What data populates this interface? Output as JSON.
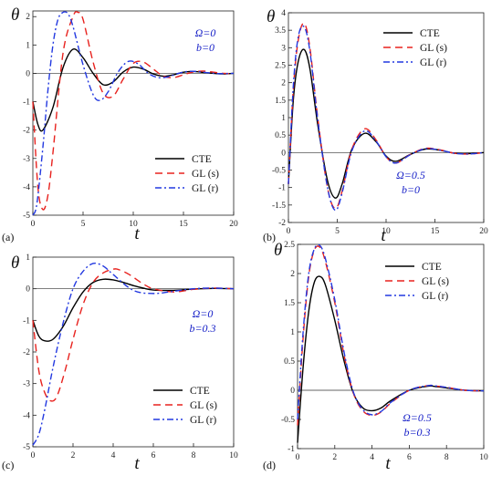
{
  "legend_entries": [
    {
      "label": "CTE",
      "color": "#000000",
      "dash": ""
    },
    {
      "label": "GL (s)",
      "color": "#e8221e",
      "dash": "8,5"
    },
    {
      "label": "GL (r)",
      "color": "#2238e0",
      "dash": "7,3,2,3"
    }
  ],
  "chart_data": [
    {
      "type": "line",
      "panel": "(a)",
      "xlabel": "t",
      "ylabel": "θ",
      "xlim": [
        0,
        20
      ],
      "ylim": [
        -5,
        2.2
      ],
      "xticks": [
        0,
        5,
        10,
        15,
        20
      ],
      "yticks": [
        -5,
        -4,
        -3,
        -2,
        -1,
        0,
        1,
        2
      ],
      "annotation": [
        "Ω=0",
        "b=0"
      ],
      "legend_position": "bottom-right",
      "series": [
        {
          "name": "CTE",
          "x": [
            0,
            0.5,
            1,
            2,
            3,
            4,
            5,
            6,
            7,
            8,
            9,
            10,
            11,
            12,
            13,
            14,
            15,
            16,
            17,
            18,
            19,
            20
          ],
          "values": [
            -1.0,
            -1.8,
            -2.0,
            -1.2,
            0.2,
            0.85,
            0.55,
            0.0,
            -0.4,
            -0.3,
            0.05,
            0.22,
            0.15,
            -0.02,
            -0.1,
            -0.05,
            0.04,
            0.07,
            0.03,
            0.0,
            -0.02,
            0.0
          ]
        },
        {
          "name": "GL (s)",
          "x": [
            0,
            0.5,
            1,
            1.5,
            2,
            3,
            4,
            4.5,
            5,
            6,
            7,
            8,
            9,
            10,
            11,
            12,
            13,
            14,
            15,
            16,
            17,
            18,
            19,
            20
          ],
          "values": [
            -1.0,
            -4.0,
            -4.8,
            -4.3,
            -2.8,
            0.7,
            2.0,
            2.15,
            1.9,
            0.4,
            -0.7,
            -0.8,
            -0.2,
            0.35,
            0.4,
            0.15,
            -0.1,
            -0.15,
            -0.05,
            0.05,
            0.08,
            0.04,
            0.0,
            -0.01
          ]
        },
        {
          "name": "GL (r)",
          "x": [
            0,
            0.4,
            1,
            1.5,
            2,
            2.5,
            3,
            3.5,
            4,
            5,
            6,
            6.7,
            7.5,
            8.5,
            9.5,
            10.5,
            11.5,
            12.5,
            13.5,
            14.5,
            15.5,
            16.5,
            17.5,
            18.5,
            20
          ],
          "values": [
            -5.0,
            -4.6,
            -2.6,
            -0.6,
            1.0,
            1.9,
            2.15,
            2.1,
            1.65,
            0.3,
            -0.75,
            -0.95,
            -0.65,
            0.05,
            0.42,
            0.33,
            0.0,
            -0.15,
            -0.12,
            0.0,
            0.07,
            0.06,
            0.02,
            -0.01,
            0.0
          ]
        }
      ]
    },
    {
      "type": "line",
      "panel": "(b)",
      "xlabel": "t",
      "ylabel": "θ",
      "xlim": [
        0,
        20
      ],
      "ylim": [
        -2,
        4
      ],
      "xticks": [
        0,
        5,
        10,
        15,
        20
      ],
      "yticks": [
        -2,
        -1.5,
        -1,
        -0.5,
        0,
        0.5,
        1,
        1.5,
        2,
        2.5,
        3,
        3.5,
        4
      ],
      "annotation": [
        "Ω=0.5",
        "b=0"
      ],
      "legend_position": "top-right",
      "series": [
        {
          "name": "CTE",
          "x": [
            0,
            0.5,
            1,
            1.6,
            2.2,
            3,
            4,
            4.8,
            5.5,
            6.5,
            7.8,
            9,
            10,
            11,
            12.5,
            14,
            15.5,
            17,
            18.5,
            20
          ],
          "values": [
            -0.9,
            1.5,
            2.6,
            2.95,
            2.4,
            0.8,
            -0.8,
            -1.3,
            -0.9,
            0.1,
            0.55,
            0.3,
            -0.1,
            -0.25,
            -0.05,
            0.1,
            0.07,
            -0.02,
            -0.03,
            0.0
          ]
        },
        {
          "name": "GL (s)",
          "x": [
            0,
            0.5,
            1,
            1.6,
            2.2,
            3,
            4,
            4.8,
            5.5,
            6.5,
            7.8,
            9,
            10,
            11,
            12.5,
            14,
            15.5,
            17,
            18.5,
            20
          ],
          "values": [
            -0.9,
            1.8,
            3.2,
            3.7,
            3.0,
            1.0,
            -1.0,
            -1.6,
            -1.1,
            0.1,
            0.68,
            0.35,
            -0.12,
            -0.3,
            -0.05,
            0.12,
            0.08,
            -0.02,
            -0.04,
            0.0
          ]
        },
        {
          "name": "GL (r)",
          "x": [
            0,
            0.5,
            1,
            1.6,
            2.2,
            3,
            4,
            4.8,
            5.5,
            6.5,
            7.8,
            9,
            10,
            11,
            12.5,
            14,
            15.5,
            17,
            18.5,
            20
          ],
          "values": [
            -0.9,
            1.9,
            3.3,
            3.6,
            2.9,
            0.95,
            -1.0,
            -1.65,
            -1.15,
            0.05,
            0.62,
            0.32,
            -0.12,
            -0.3,
            -0.06,
            0.11,
            0.07,
            -0.02,
            -0.04,
            0.0
          ]
        }
      ]
    },
    {
      "type": "line",
      "panel": "(c)",
      "xlabel": "t",
      "ylabel": "θ",
      "xlim": [
        0,
        10
      ],
      "ylim": [
        -5,
        1
      ],
      "xticks": [
        0,
        2,
        4,
        6,
        8,
        10
      ],
      "yticks": [
        -5,
        -4,
        -3,
        -2,
        -1,
        0,
        1
      ],
      "annotation": [
        "Ω=0",
        "b=0.3"
      ],
      "legend_position": "bottom-right",
      "series": [
        {
          "name": "CTE",
          "x": [
            0,
            0.3,
            0.6,
            1,
            1.5,
            2,
            2.5,
            3,
            3.5,
            4,
            4.5,
            5,
            5.5,
            6,
            7,
            8,
            9,
            10
          ],
          "values": [
            -1.0,
            -1.5,
            -1.65,
            -1.6,
            -1.2,
            -0.6,
            -0.1,
            0.2,
            0.3,
            0.28,
            0.2,
            0.1,
            0.02,
            -0.04,
            -0.05,
            -0.01,
            0.01,
            0.0
          ]
        },
        {
          "name": "GL (s)",
          "x": [
            0,
            0.3,
            0.6,
            0.9,
            1.2,
            1.6,
            2,
            2.5,
            3,
            3.5,
            4,
            4.3,
            4.8,
            5.5,
            6,
            7,
            8,
            9,
            10
          ],
          "values": [
            -1.0,
            -2.6,
            -3.3,
            -3.55,
            -3.4,
            -2.6,
            -1.6,
            -0.5,
            0.2,
            0.5,
            0.62,
            0.6,
            0.45,
            0.15,
            0.0,
            -0.1,
            -0.02,
            0.02,
            0.0
          ]
        },
        {
          "name": "GL (r)",
          "x": [
            0,
            0.3,
            0.6,
            1,
            1.5,
            2,
            2.5,
            3,
            3.5,
            4,
            5,
            6,
            7,
            8,
            9,
            10
          ],
          "values": [
            -4.95,
            -4.6,
            -3.8,
            -2.5,
            -1.1,
            0.0,
            0.55,
            0.8,
            0.72,
            0.45,
            -0.05,
            -0.15,
            -0.08,
            0.0,
            0.02,
            0.0
          ]
        }
      ]
    },
    {
      "type": "line",
      "panel": "(d)",
      "xlabel": "t",
      "ylabel": "θ",
      "xlim": [
        0,
        10
      ],
      "ylim": [
        -1,
        2.5
      ],
      "xticks": [
        0,
        2,
        4,
        6,
        8,
        10
      ],
      "yticks": [
        -1,
        -0.5,
        0,
        0.5,
        1,
        1.5,
        2,
        2.5
      ],
      "annotation": [
        "Ω=0.5",
        "b=0.3"
      ],
      "legend_position": "top-right",
      "series": [
        {
          "name": "CTE",
          "x": [
            0,
            0.3,
            0.6,
            0.9,
            1.2,
            1.5,
            2,
            2.5,
            3,
            3.5,
            4,
            4.5,
            5,
            6,
            7,
            7.5,
            8,
            9,
            10
          ],
          "values": [
            -0.9,
            0.4,
            1.35,
            1.85,
            1.95,
            1.8,
            1.2,
            0.5,
            -0.05,
            -0.3,
            -0.35,
            -0.3,
            -0.18,
            0.0,
            0.07,
            0.06,
            0.04,
            0.0,
            -0.01
          ]
        },
        {
          "name": "GL (s)",
          "x": [
            0,
            0.3,
            0.6,
            0.9,
            1.2,
            1.5,
            2,
            2.5,
            3,
            3.5,
            4,
            4.5,
            5,
            6,
            7,
            7.5,
            8,
            9,
            10
          ],
          "values": [
            -0.6,
            0.9,
            1.95,
            2.4,
            2.45,
            2.2,
            1.5,
            0.6,
            -0.05,
            -0.35,
            -0.43,
            -0.37,
            -0.22,
            0.0,
            0.08,
            0.07,
            0.05,
            0.0,
            -0.01
          ]
        },
        {
          "name": "GL (r)",
          "x": [
            0,
            0.3,
            0.6,
            0.9,
            1.2,
            1.5,
            2,
            2.5,
            3,
            3.5,
            4,
            4.5,
            5,
            6,
            7,
            7.5,
            8,
            9,
            10
          ],
          "values": [
            -0.5,
            1.0,
            2.0,
            2.42,
            2.48,
            2.25,
            1.55,
            0.65,
            -0.03,
            -0.33,
            -0.42,
            -0.36,
            -0.21,
            0.0,
            0.08,
            0.07,
            0.05,
            0.0,
            -0.01
          ]
        }
      ]
    }
  ]
}
